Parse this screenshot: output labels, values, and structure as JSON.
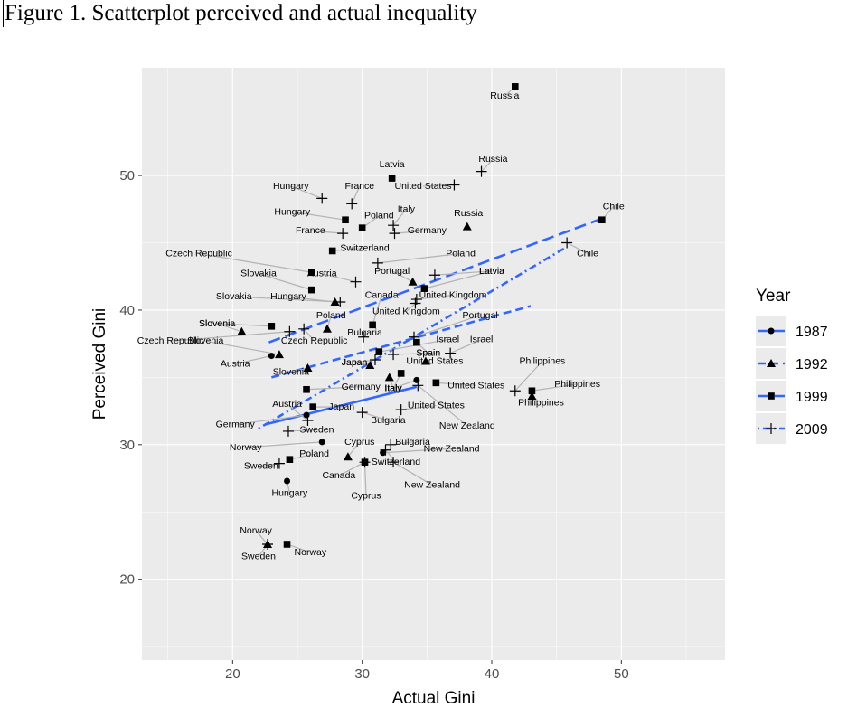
{
  "figure_title": "Figure 1. Scatterplot perceived and actual inequality",
  "colors": {
    "panel_bg": "#ebebeb",
    "grid": "#ffffff",
    "fit_line": "#3366ff",
    "point": "#000000",
    "connector": "#b3b3b3"
  },
  "chart_data": {
    "type": "scatter",
    "title": "",
    "xlabel": "Actual Gini",
    "ylabel": "Perceived Gini",
    "xlim": [
      13,
      58
    ],
    "ylim": [
      14,
      58
    ],
    "xticks": [
      20,
      30,
      40,
      50
    ],
    "yticks": [
      20,
      30,
      40,
      50
    ],
    "grid": true,
    "legend": {
      "title": "Year",
      "placement": "right",
      "entries": [
        {
          "label": "1987",
          "shape": "circle",
          "dash": "solid"
        },
        {
          "label": "1992",
          "shape": "triangle",
          "dash": "dash"
        },
        {
          "label": "1999",
          "shape": "square",
          "dash": "longdash"
        },
        {
          "label": "2009",
          "shape": "plus",
          "dash": "dotdash"
        }
      ]
    },
    "fit_lines": [
      {
        "year": "1987",
        "x": [
          22.5,
          34.2
        ],
        "y": [
          31.5,
          34.3
        ]
      },
      {
        "year": "1992",
        "x": [
          23,
          43
        ],
        "y": [
          35.0,
          40.3
        ]
      },
      {
        "year": "1999",
        "x": [
          22.8,
          48.5
        ],
        "y": [
          37.6,
          46.8
        ]
      },
      {
        "year": "2009",
        "x": [
          22,
          45.8
        ],
        "y": [
          31.2,
          44.7
        ]
      }
    ],
    "series": [
      {
        "name": "1987",
        "shape": "circle",
        "points": [
          {
            "x": 23.0,
            "y": 36.6,
            "label": "Austria",
            "lx": 20.2,
            "ly": 35.8
          },
          {
            "x": 25.7,
            "y": 32.2,
            "label": "Germany",
            "lx": 20.2,
            "ly": 31.3
          },
          {
            "x": 26.9,
            "y": 30.2,
            "label": "Norway",
            "lx": 21.0,
            "ly": 29.6
          },
          {
            "x": 24.2,
            "y": 27.3,
            "label": "Hungary",
            "lx": 24.4,
            "ly": 26.2
          },
          {
            "x": 31.6,
            "y": 29.4,
            "label": "New Zealand",
            "lx": 36.9,
            "ly": 29.5
          },
          {
            "x": 34.2,
            "y": 34.8,
            "label": "Italy",
            "lx": 32.4,
            "ly": 34.0
          }
        ]
      },
      {
        "name": "1992",
        "shape": "triangle",
        "points": [
          {
            "x": 20.7,
            "y": 38.4,
            "label": "Slovenia",
            "lx": 18.8,
            "ly": 38.8
          },
          {
            "x": 23.6,
            "y": 36.7,
            "label": "Slovenia",
            "lx": 17.9,
            "ly": 37.5
          },
          {
            "x": 25.8,
            "y": 35.7,
            "label": "Slovenia",
            "lx": 24.5,
            "ly": 35.2
          },
          {
            "x": 27.3,
            "y": 38.6,
            "label": "Poland",
            "lx": 27.6,
            "ly": 39.4
          },
          {
            "x": 27.9,
            "y": 40.6,
            "label": "Hungary",
            "lx": 24.3,
            "ly": 40.8
          },
          {
            "x": 30.6,
            "y": 35.9,
            "label": "Japan",
            "lx": 29.4,
            "ly": 35.9
          },
          {
            "x": 32.1,
            "y": 35.0,
            "label": "Italy",
            "lx": 32.4,
            "ly": 34.0
          },
          {
            "x": 34.9,
            "y": 36.2,
            "label": "United States",
            "lx": 35.6,
            "ly": 36.0
          },
          {
            "x": 33.9,
            "y": 42.1,
            "label": "Portugal",
            "lx": 32.3,
            "ly": 42.7
          },
          {
            "x": 38.1,
            "y": 46.2,
            "label": "Russia",
            "lx": 38.2,
            "ly": 47.0
          },
          {
            "x": 43.1,
            "y": 33.6,
            "label": "Philippines",
            "lx": 43.8,
            "ly": 32.9
          },
          {
            "x": 28.9,
            "y": 29.1,
            "label": "Cyprus",
            "lx": 29.8,
            "ly": 30.0
          },
          {
            "x": 22.7,
            "y": 22.6,
            "label": "Norway",
            "lx": 21.8,
            "ly": 23.4
          }
        ]
      },
      {
        "name": "1999",
        "shape": "square",
        "points": [
          {
            "x": 41.8,
            "y": 56.6,
            "label": "Russia",
            "lx": 41.0,
            "ly": 55.7
          },
          {
            "x": 32.3,
            "y": 49.8,
            "label": "Latvia",
            "lx": 32.3,
            "ly": 50.6
          },
          {
            "x": 28.7,
            "y": 46.7,
            "label": "Hungary",
            "lx": 24.6,
            "ly": 47.1
          },
          {
            "x": 30.0,
            "y": 46.1,
            "label": "Poland",
            "lx": 31.3,
            "ly": 46.8
          },
          {
            "x": 48.5,
            "y": 46.7,
            "label": "Chile",
            "lx": 49.4,
            "ly": 47.5
          },
          {
            "x": 27.7,
            "y": 44.4,
            "label": "Switzerland",
            "lx": 30.2,
            "ly": 44.4
          },
          {
            "x": 26.1,
            "y": 42.8,
            "label": "Czech Republic",
            "lx": 17.4,
            "ly": 44.0
          },
          {
            "x": 26.1,
            "y": 41.5,
            "label": "Slovakia",
            "lx": 22.0,
            "ly": 42.5
          },
          {
            "x": 23.0,
            "y": 38.8,
            "label": "Slovenia",
            "lx": 18.8,
            "ly": 38.8
          },
          {
            "x": 30.8,
            "y": 38.9,
            "label": "Canada",
            "lx": 31.5,
            "ly": 40.9
          },
          {
            "x": 34.8,
            "y": 41.6,
            "label": "Latvia",
            "lx": 40.0,
            "ly": 42.7
          },
          {
            "x": 31.3,
            "y": 36.9,
            "label": "Israel",
            "lx": 36.6,
            "ly": 37.6
          },
          {
            "x": 34.2,
            "y": 37.6,
            "label": "Spain",
            "lx": 35.1,
            "ly": 36.6
          },
          {
            "x": 33.0,
            "y": 35.3,
            "label": "Italy",
            "lx": 32.4,
            "ly": 34.0
          },
          {
            "x": 35.7,
            "y": 34.6,
            "label": "United States",
            "lx": 38.8,
            "ly": 34.2
          },
          {
            "x": 43.1,
            "y": 34.0,
            "label": "Philippines",
            "lx": 46.6,
            "ly": 34.3
          },
          {
            "x": 25.7,
            "y": 34.1,
            "label": "Germany",
            "lx": 29.9,
            "ly": 34.1
          },
          {
            "x": 26.2,
            "y": 32.8,
            "label": "Japan",
            "lx": 28.4,
            "ly": 32.6
          },
          {
            "x": 24.4,
            "y": 28.9,
            "label": "Poland",
            "lx": 26.3,
            "ly": 29.1
          },
          {
            "x": 30.2,
            "y": 28.7,
            "label": "Canada",
            "lx": 28.2,
            "ly": 27.5
          },
          {
            "x": 24.2,
            "y": 22.6,
            "label": "Norway",
            "lx": 26.0,
            "ly": 21.8
          }
        ]
      },
      {
        "name": "2009",
        "shape": "plus",
        "points": [
          {
            "x": 39.2,
            "y": 50.3,
            "label": "Russia",
            "lx": 40.1,
            "ly": 51.0
          },
          {
            "x": 37.1,
            "y": 49.3,
            "label": "United States",
            "lx": 34.7,
            "ly": 49.0
          },
          {
            "x": 26.9,
            "y": 48.3,
            "label": "Hungary",
            "lx": 24.5,
            "ly": 49.0
          },
          {
            "x": 29.2,
            "y": 47.9,
            "label": "France",
            "lx": 29.8,
            "ly": 49.0
          },
          {
            "x": 32.4,
            "y": 46.3,
            "label": "Italy",
            "lx": 33.4,
            "ly": 47.3
          },
          {
            "x": 28.5,
            "y": 45.7,
            "label": "France",
            "lx": 26.0,
            "ly": 45.7
          },
          {
            "x": 32.5,
            "y": 45.7,
            "label": "Germany",
            "lx": 35.0,
            "ly": 45.7
          },
          {
            "x": 45.8,
            "y": 45.0,
            "label": "Chile",
            "lx": 47.4,
            "ly": 44.0
          },
          {
            "x": 31.2,
            "y": 43.5,
            "label": "Poland",
            "lx": 37.6,
            "ly": 44.0
          },
          {
            "x": 29.5,
            "y": 42.1,
            "label": "Austria",
            "lx": 26.9,
            "ly": 42.5
          },
          {
            "x": 35.6,
            "y": 42.6,
            "label": "Latvia",
            "lx": 40.0,
            "ly": 42.7
          },
          {
            "x": 28.3,
            "y": 40.6,
            "label": "Slovakia",
            "lx": 20.1,
            "ly": 40.8
          },
          {
            "x": 34.2,
            "y": 40.8,
            "label": "United Kingdom",
            "lx": 37.0,
            "ly": 40.9
          },
          {
            "x": 25.5,
            "y": 38.6,
            "label": "Czech Republic",
            "lx": 26.3,
            "ly": 37.5
          },
          {
            "x": 24.4,
            "y": 38.4,
            "label": "Czech Republic",
            "lx": 15.2,
            "ly": 37.5
          },
          {
            "x": 30.1,
            "y": 38.0,
            "label": "Bulgaria",
            "lx": 30.2,
            "ly": 38.1
          },
          {
            "x": 34.1,
            "y": 40.5,
            "label": "United Kingdom",
            "lx": 33.4,
            "ly": 39.7
          },
          {
            "x": 36.8,
            "y": 36.8,
            "label": "Israel",
            "lx": 39.2,
            "ly": 37.6
          },
          {
            "x": 31.0,
            "y": 36.3,
            "label": "Japan",
            "lx": 29.4,
            "ly": 35.9
          },
          {
            "x": 34.0,
            "y": 38.0,
            "label": "Portugal",
            "lx": 39.1,
            "ly": 39.4
          },
          {
            "x": 32.4,
            "y": 36.7,
            "label": "Spain",
            "lx": 35.1,
            "ly": 36.6
          },
          {
            "x": 41.8,
            "y": 34.0,
            "label": "Philippines",
            "lx": 43.9,
            "ly": 36.0
          },
          {
            "x": 33.0,
            "y": 32.6,
            "label": "United States",
            "lx": 35.7,
            "ly": 32.7
          },
          {
            "x": 30.0,
            "y": 32.4,
            "label": "Bulgaria",
            "lx": 32.0,
            "ly": 31.6
          },
          {
            "x": 25.8,
            "y": 31.8,
            "label": "Austria",
            "lx": 24.2,
            "ly": 32.8
          },
          {
            "x": 24.3,
            "y": 31.0,
            "label": "Sweden",
            "lx": 26.5,
            "ly": 30.9
          },
          {
            "x": 32.2,
            "y": 30.0,
            "label": "Bulgaria",
            "lx": 33.9,
            "ly": 30.0
          },
          {
            "x": 34.3,
            "y": 34.4,
            "label": "New Zealand",
            "lx": 38.1,
            "ly": 31.2
          },
          {
            "x": 31.8,
            "y": 29.6,
            "label": "Switzerland",
            "lx": 32.6,
            "ly": 28.5
          },
          {
            "x": 32.4,
            "y": 28.7,
            "label": "New Zealand",
            "lx": 35.4,
            "ly": 26.8
          },
          {
            "x": 30.2,
            "y": 28.7,
            "label": "Cyprus",
            "lx": 30.3,
            "ly": 26.0
          },
          {
            "x": 22.7,
            "y": 22.6,
            "label": "Sweden",
            "lx": 22.0,
            "ly": 21.5
          },
          {
            "x": 23.6,
            "y": 28.6,
            "label": "Sweden",
            "lx": 22.2,
            "ly": 28.2
          }
        ]
      }
    ]
  }
}
